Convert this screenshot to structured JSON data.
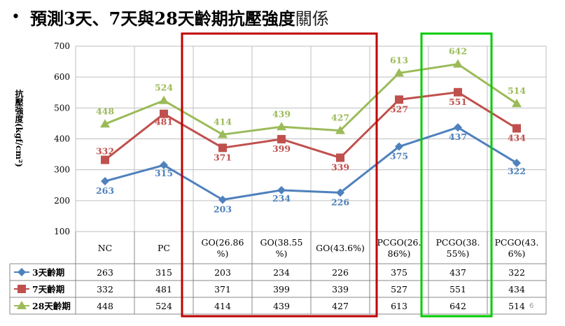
{
  "title": {
    "bullet": "•",
    "main": "預測3天、7天與28天齡期抗壓強度",
    "tail": "關係"
  },
  "slide_number": "6",
  "colors": {
    "s3": "#4f81bd",
    "s7": "#c0504d",
    "s28": "#9bbb59",
    "red_box": "#c00000",
    "green_box": "#00cc00"
  },
  "chart_data": {
    "type": "line",
    "ylabel": "抗壓強度(kgf/cm²)",
    "ylim": [
      100,
      700
    ],
    "yticks": [
      100,
      200,
      300,
      400,
      500,
      600,
      700
    ],
    "grid": true,
    "categories": [
      "NC",
      "PC",
      "GO(26.86%)",
      "GO(38.55%)",
      "GO(43.6%)",
      "PCGO(26.86%)",
      "PCGO(38.55%)",
      "PCGO(43.6%)"
    ],
    "category_lines": [
      [
        "NC"
      ],
      [
        "PC"
      ],
      [
        "GO(26.86",
        "%)"
      ],
      [
        "GO(38.55",
        "%)"
      ],
      [
        "GO(43.6%)"
      ],
      [
        "PCGO(26.",
        "86%)"
      ],
      [
        "PCGO(38.",
        "55%)"
      ],
      [
        "PCGO(43.",
        "6%)"
      ]
    ],
    "series": [
      {
        "name": "3天齡期",
        "values": [
          263,
          315,
          203,
          234,
          226,
          375,
          437,
          322
        ]
      },
      {
        "name": "7天齡期",
        "values": [
          332,
          481,
          371,
          399,
          339,
          527,
          551,
          434
        ]
      },
      {
        "name": "28天齡期",
        "values": [
          448,
          524,
          414,
          439,
          427,
          613,
          642,
          514
        ]
      }
    ],
    "legend": "data-table-left"
  }
}
